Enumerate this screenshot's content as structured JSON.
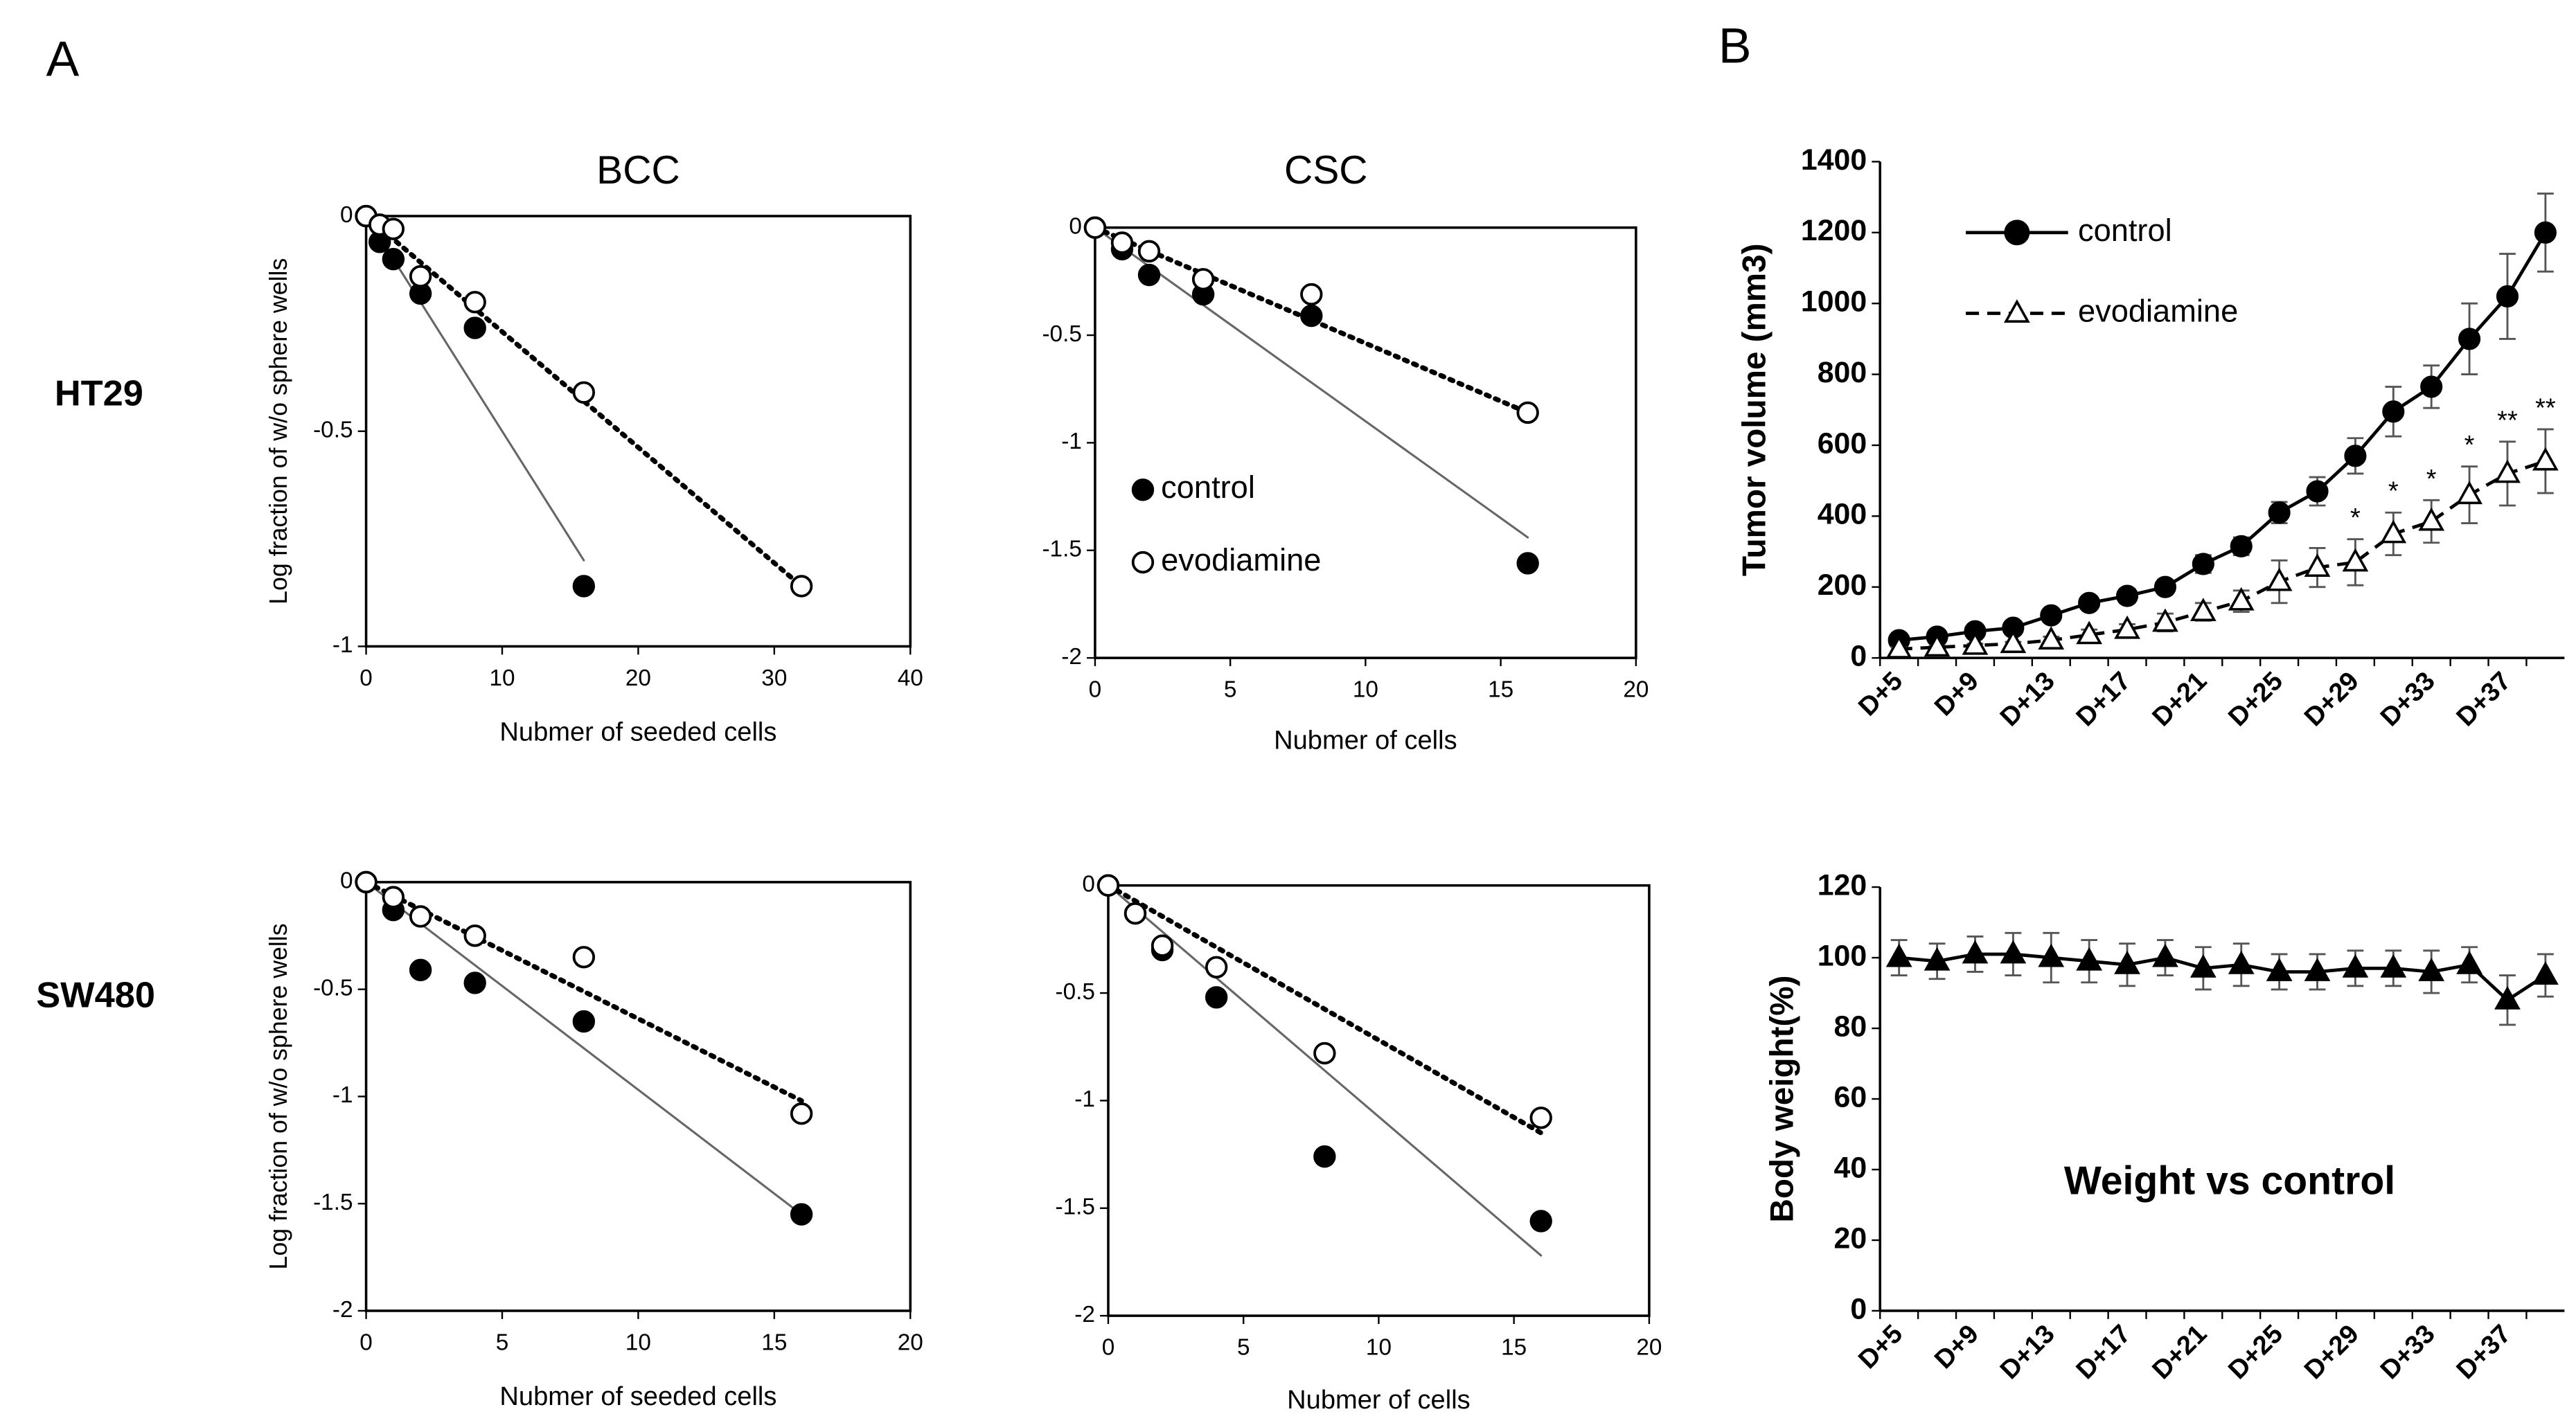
{
  "panel_labels": [
    "A",
    "B"
  ],
  "row_labels": [
    "HT29",
    "SW480"
  ],
  "chart_data": [
    {
      "type": "scatter",
      "title": "BCC",
      "x_label": "Nubmer of seeded cells",
      "y_label": "Log fraction of w/o sphere wells",
      "xlim": [
        0,
        40
      ],
      "xticks": [
        0,
        10,
        20,
        30,
        40
      ],
      "ylim": [
        -1,
        0
      ],
      "yticks": [
        0,
        -0.5,
        -1
      ],
      "series": [
        {
          "name": "control",
          "color": "#000000",
          "marker": "filled",
          "line": "solid",
          "x": [
            0,
            1,
            2,
            4,
            8,
            16
          ],
          "values": [
            0,
            -0.06,
            -0.1,
            -0.18,
            -0.26,
            -0.86
          ],
          "fit": {
            "x": [
              0,
              16
            ],
            "y": [
              0,
              -0.8
            ]
          }
        },
        {
          "name": "evodiamine",
          "color": "#000000",
          "marker": "open",
          "line": "dotted",
          "x": [
            0,
            1,
            2,
            4,
            8,
            16,
            32
          ],
          "values": [
            0,
            -0.02,
            -0.03,
            -0.14,
            -0.2,
            -0.41,
            -0.86
          ],
          "fit": {
            "x": [
              0,
              32
            ],
            "y": [
              0,
              -0.86
            ]
          }
        }
      ]
    },
    {
      "type": "scatter",
      "title": "CSC",
      "x_label": "Nubmer of cells",
      "legend": true,
      "xlim": [
        0,
        20
      ],
      "xticks": [
        0,
        5,
        10,
        15,
        20
      ],
      "ylim": [
        -2,
        0
      ],
      "yticks": [
        0,
        -0.5,
        -1,
        -1.5,
        -2
      ],
      "series": [
        {
          "name": "control",
          "color": "#000000",
          "marker": "filled",
          "line": "solid",
          "x": [
            0,
            1,
            2,
            4,
            8,
            16
          ],
          "values": [
            0,
            -0.1,
            -0.22,
            -0.31,
            -0.41,
            -1.56
          ],
          "fit": {
            "x": [
              0,
              16
            ],
            "y": [
              0,
              -1.44
            ]
          }
        },
        {
          "name": "evodiamine",
          "color": "#000000",
          "marker": "open",
          "line": "dotted",
          "x": [
            0,
            1,
            2,
            4,
            8,
            16
          ],
          "values": [
            0,
            -0.07,
            -0.11,
            -0.24,
            -0.31,
            -0.86
          ],
          "fit": {
            "x": [
              0,
              16
            ],
            "y": [
              0,
              -0.86
            ]
          }
        }
      ]
    },
    {
      "type": "scatter",
      "x_label": "Nubmer of seeded cells",
      "y_label": "Log fraction of w/o sphere wells",
      "xlim": [
        0,
        20
      ],
      "xticks": [
        0,
        5,
        10,
        15,
        20
      ],
      "ylim": [
        -2,
        0
      ],
      "yticks": [
        0,
        -0.5,
        -1,
        -1.5,
        -2
      ],
      "series": [
        {
          "name": "control",
          "color": "#000000",
          "marker": "filled",
          "line": "solid",
          "x": [
            0,
            1,
            2,
            4,
            8,
            16
          ],
          "values": [
            0,
            -0.13,
            -0.41,
            -0.47,
            -0.65,
            -1.55
          ],
          "fit": {
            "x": [
              0,
              16
            ],
            "y": [
              0,
              -1.55
            ]
          }
        },
        {
          "name": "evodiamine",
          "color": "#000000",
          "marker": "open",
          "line": "dotted",
          "x": [
            0,
            1,
            2,
            4,
            8,
            16
          ],
          "values": [
            0,
            -0.07,
            -0.16,
            -0.25,
            -0.35,
            -1.08
          ],
          "fit": {
            "x": [
              0,
              16
            ],
            "y": [
              0,
              -1.02
            ]
          }
        }
      ]
    },
    {
      "type": "scatter",
      "x_label": "Nubmer of cells",
      "xlim": [
        0,
        20
      ],
      "xticks": [
        0,
        5,
        10,
        15,
        20
      ],
      "ylim": [
        -2,
        0
      ],
      "yticks": [
        0,
        -0.5,
        -1,
        -1.5,
        -2
      ],
      "series": [
        {
          "name": "control",
          "color": "#000000",
          "marker": "filled",
          "line": "solid",
          "x": [
            0,
            1,
            2,
            4,
            8,
            16
          ],
          "values": [
            0,
            -0.13,
            -0.3,
            -0.52,
            -1.26,
            -1.56
          ],
          "fit": {
            "x": [
              0,
              16
            ],
            "y": [
              0,
              -1.72
            ]
          }
        },
        {
          "name": "evodiamine",
          "color": "#000000",
          "marker": "open",
          "line": "dotted",
          "x": [
            0,
            1,
            2,
            4,
            8,
            16
          ],
          "values": [
            0,
            -0.13,
            -0.28,
            -0.38,
            -0.78,
            -1.08
          ],
          "fit": {
            "x": [
              0,
              16
            ],
            "y": [
              0,
              -1.15
            ]
          }
        }
      ]
    },
    {
      "type": "line",
      "y_label": "Tumor volume (mm3)",
      "legend": true,
      "categories": [
        "D+5",
        null,
        "D+9",
        null,
        "D+13",
        null,
        "D+17",
        null,
        "D+21",
        null,
        "D+25",
        null,
        "D+29",
        null,
        "D+33",
        null,
        "D+37",
        null
      ],
      "ylim": [
        0,
        1400
      ],
      "yticks": [
        0,
        200,
        400,
        600,
        800,
        1000,
        1200,
        1400
      ],
      "series": [
        {
          "name": "control",
          "color": "#000000",
          "marker": "circle",
          "fill": "filled",
          "line": "solid",
          "values": [
            50,
            60,
            75,
            85,
            120,
            155,
            175,
            200,
            265,
            315,
            410,
            470,
            570,
            695,
            765,
            900,
            1020,
            1200
          ],
          "errors": [
            10,
            10,
            10,
            15,
            15,
            15,
            20,
            20,
            25,
            25,
            30,
            40,
            50,
            70,
            60,
            100,
            120,
            110
          ]
        },
        {
          "name": "evodiamine",
          "color": "#000000",
          "marker": "triangle",
          "fill": "open",
          "line": "dashed",
          "values": [
            25,
            30,
            35,
            40,
            50,
            65,
            80,
            100,
            130,
            160,
            215,
            255,
            270,
            350,
            385,
            460,
            520,
            555
          ],
          "errors": [
            5,
            5,
            5,
            5,
            10,
            15,
            15,
            25,
            25,
            30,
            60,
            55,
            65,
            60,
            60,
            80,
            90,
            90
          ],
          "significance": [
            null,
            null,
            null,
            null,
            null,
            null,
            null,
            null,
            null,
            null,
            null,
            null,
            "*",
            "*",
            "*",
            "*",
            "**",
            "**"
          ]
        }
      ]
    },
    {
      "type": "line",
      "y_label": "Body weight(%)",
      "annotation": "Weight vs control",
      "categories": [
        "D+5",
        null,
        "D+9",
        null,
        "D+13",
        null,
        "D+17",
        null,
        "D+21",
        null,
        "D+25",
        null,
        "D+29",
        null,
        "D+33",
        null,
        "D+37",
        null
      ],
      "ylim": [
        0,
        120
      ],
      "yticks": [
        0,
        20,
        40,
        60,
        80,
        100,
        120
      ],
      "series": [
        {
          "name": "evodiamine",
          "color": "#000000",
          "marker": "triangle",
          "fill": "filled",
          "line": "solid",
          "values": [
            100,
            99,
            101,
            101,
            100,
            99,
            98,
            100,
            97,
            98,
            96,
            96,
            97,
            97,
            96,
            98,
            88,
            95
          ],
          "errors": [
            5,
            5,
            5,
            6,
            7,
            6,
            6,
            5,
            6,
            6,
            5,
            5,
            5,
            5,
            6,
            5,
            7,
            6
          ]
        }
      ]
    }
  ]
}
